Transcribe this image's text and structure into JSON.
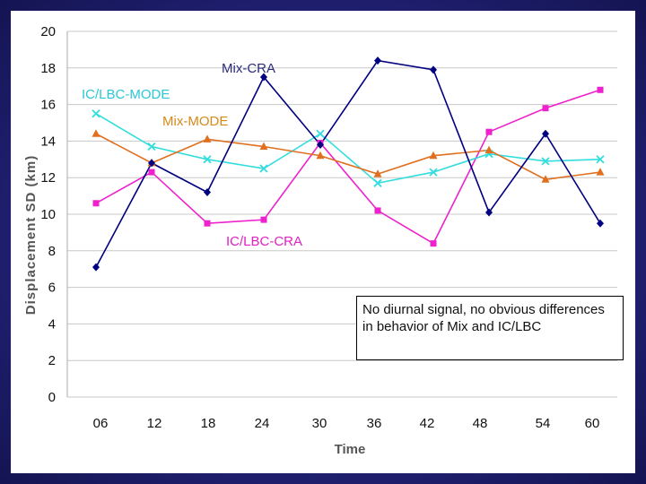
{
  "chart_data": {
    "type": "line",
    "xlabel": "Time",
    "ylabel": "Displacement SD (km)",
    "x": [
      "06",
      "12",
      "18",
      "24",
      "30",
      "36",
      "42",
      "48",
      "54",
      "60"
    ],
    "ylim": [
      0,
      20
    ],
    "yticks": [
      0,
      2,
      4,
      6,
      8,
      10,
      12,
      14,
      16,
      18,
      20
    ],
    "grid": true,
    "series": [
      {
        "name": "Mix-CRA",
        "color": "#000080",
        "marker": "diamond",
        "values": [
          7.1,
          12.8,
          11.2,
          17.5,
          13.8,
          18.4,
          17.9,
          10.1,
          14.4,
          9.5
        ]
      },
      {
        "name": "IC/LBC-MODE",
        "color": "#33DDDD",
        "marker": "x",
        "values": [
          15.5,
          13.7,
          13.0,
          12.5,
          14.4,
          11.7,
          12.3,
          13.3,
          12.9,
          13.0
        ]
      },
      {
        "name": "Mix-MODE",
        "color": "#E07020",
        "marker": "triangle",
        "values": [
          14.4,
          12.8,
          14.1,
          13.7,
          13.2,
          12.2,
          13.2,
          13.5,
          11.9,
          12.3
        ]
      },
      {
        "name": "IC/LBC-CRA",
        "color": "#EE22CC",
        "marker": "square",
        "values": [
          10.6,
          12.3,
          9.5,
          9.7,
          13.9,
          10.2,
          8.4,
          14.5,
          15.8,
          16.8
        ]
      }
    ],
    "label_colors": {
      "Mix-CRA": "#2A2A7A",
      "IC/LBC-MODE": "#2AC7D6",
      "Mix-MODE": "#D48A1A",
      "IC/LBC-CRA": "#E020C0"
    },
    "annotation": "No diurnal signal, no obvious differences in behavior of Mix and IC/LBC"
  }
}
